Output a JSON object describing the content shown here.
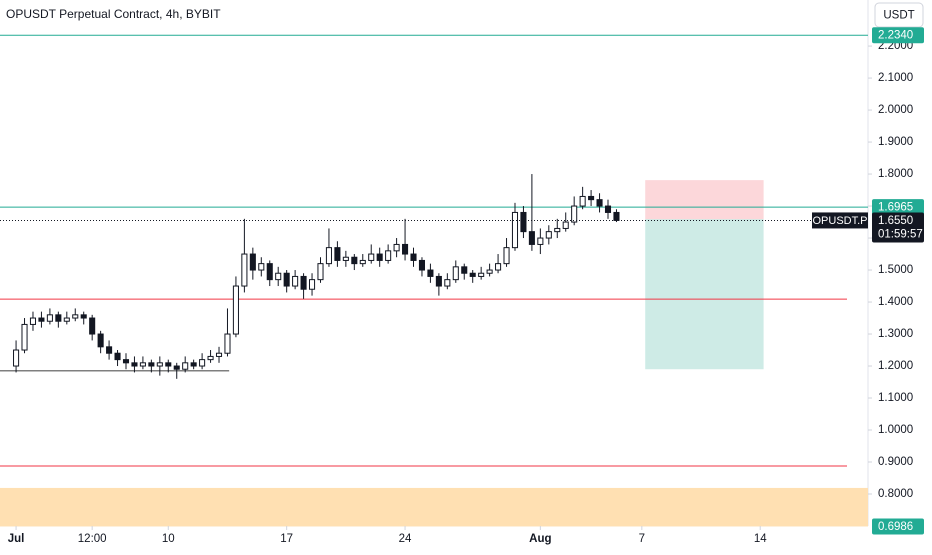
{
  "chart_data": {
    "type": "candlestick",
    "title": "OPUSDT Perpetual Contract, 4h, BYBIT",
    "currency": "USDT",
    "x": [
      0,
      0.5,
      1,
      1.5,
      2,
      2.5,
      3,
      3.5,
      4,
      4.5,
      5,
      5.5,
      6,
      6.5,
      7,
      7.5,
      8,
      8.5,
      9,
      9.5,
      10,
      10.5,
      11,
      11.5,
      12,
      12.5,
      13,
      13.5,
      14,
      14.5,
      15,
      15.5,
      16,
      16.5,
      17,
      17.5,
      18,
      18.5,
      19,
      19.5,
      20,
      20.5,
      21,
      21.5,
      22,
      22.5,
      23,
      23.5,
      24,
      24.5,
      25,
      25.5,
      26,
      26.5,
      27,
      27.5,
      28,
      28.5,
      29,
      29.5,
      30,
      30.5,
      31,
      31.5,
      32,
      32.5,
      33,
      33.5,
      34,
      34.5,
      35,
      35.5
    ],
    "open": [
      1.2,
      1.25,
      1.33,
      1.35,
      1.34,
      1.36,
      1.34,
      1.35,
      1.36,
      1.35,
      1.3,
      1.26,
      1.24,
      1.22,
      1.21,
      1.2,
      1.21,
      1.2,
      1.21,
      1.2,
      1.19,
      1.21,
      1.2,
      1.22,
      1.23,
      1.24,
      1.3,
      1.45,
      1.55,
      1.5,
      1.52,
      1.47,
      1.49,
      1.45,
      1.48,
      1.44,
      1.47,
      1.52,
      1.57,
      1.53,
      1.54,
      1.52,
      1.53,
      1.55,
      1.53,
      1.56,
      1.58,
      1.55,
      1.53,
      1.5,
      1.48,
      1.45,
      1.47,
      1.51,
      1.49,
      1.48,
      1.49,
      1.5,
      1.52,
      1.57,
      1.68,
      1.62,
      1.58,
      1.6,
      1.62,
      1.63,
      1.65,
      1.7,
      1.73,
      1.72,
      1.7,
      1.68
    ],
    "high": [
      1.28,
      1.35,
      1.37,
      1.37,
      1.38,
      1.37,
      1.37,
      1.38,
      1.37,
      1.36,
      1.31,
      1.28,
      1.25,
      1.24,
      1.23,
      1.23,
      1.22,
      1.23,
      1.22,
      1.21,
      1.23,
      1.22,
      1.24,
      1.25,
      1.26,
      1.38,
      1.48,
      1.66,
      1.57,
      1.54,
      1.53,
      1.51,
      1.5,
      1.5,
      1.49,
      1.49,
      1.54,
      1.63,
      1.59,
      1.56,
      1.55,
      1.55,
      1.58,
      1.57,
      1.58,
      1.6,
      1.66,
      1.57,
      1.54,
      1.52,
      1.49,
      1.49,
      1.53,
      1.52,
      1.5,
      1.51,
      1.52,
      1.55,
      1.6,
      1.71,
      1.7,
      1.8,
      1.63,
      1.64,
      1.66,
      1.68,
      1.73,
      1.76,
      1.75,
      1.74,
      1.72,
      1.69
    ],
    "low": [
      1.18,
      1.24,
      1.31,
      1.32,
      1.33,
      1.32,
      1.33,
      1.34,
      1.33,
      1.28,
      1.24,
      1.22,
      1.2,
      1.19,
      1.18,
      1.19,
      1.18,
      1.17,
      1.18,
      1.16,
      1.18,
      1.19,
      1.19,
      1.21,
      1.21,
      1.23,
      1.29,
      1.43,
      1.47,
      1.48,
      1.45,
      1.45,
      1.43,
      1.44,
      1.41,
      1.42,
      1.46,
      1.51,
      1.51,
      1.51,
      1.5,
      1.51,
      1.52,
      1.51,
      1.52,
      1.54,
      1.53,
      1.51,
      1.48,
      1.46,
      1.42,
      1.44,
      1.46,
      1.47,
      1.46,
      1.47,
      1.48,
      1.49,
      1.51,
      1.56,
      1.6,
      1.56,
      1.55,
      1.58,
      1.6,
      1.62,
      1.64,
      1.69,
      1.7,
      1.68,
      1.66,
      1.65
    ],
    "close": [
      1.25,
      1.33,
      1.35,
      1.34,
      1.36,
      1.34,
      1.35,
      1.36,
      1.35,
      1.3,
      1.26,
      1.24,
      1.22,
      1.21,
      1.2,
      1.21,
      1.2,
      1.21,
      1.2,
      1.19,
      1.21,
      1.2,
      1.22,
      1.23,
      1.24,
      1.3,
      1.45,
      1.55,
      1.5,
      1.52,
      1.47,
      1.49,
      1.45,
      1.48,
      1.44,
      1.47,
      1.52,
      1.57,
      1.53,
      1.54,
      1.52,
      1.53,
      1.55,
      1.53,
      1.56,
      1.58,
      1.55,
      1.53,
      1.5,
      1.48,
      1.45,
      1.47,
      1.51,
      1.49,
      1.48,
      1.49,
      1.5,
      1.52,
      1.57,
      1.68,
      1.62,
      1.58,
      1.6,
      1.62,
      1.63,
      1.65,
      1.7,
      1.73,
      1.72,
      1.7,
      1.68,
      1.655
    ],
    "xlim": [
      -0.95,
      49.9
    ],
    "xticks": [
      {
        "value": 0,
        "label": "Jul"
      },
      {
        "value": 4.5,
        "label": "12:00"
      },
      {
        "value": 9,
        "label": "10"
      },
      {
        "value": 16,
        "label": "17"
      },
      {
        "value": 23,
        "label": "24"
      },
      {
        "value": 31,
        "label": "Aug"
      },
      {
        "value": 37,
        "label": "7"
      },
      {
        "value": 44,
        "label": "14"
      }
    ],
    "ylim": [
      0.7,
      2.344
    ],
    "yticks": [
      {
        "value": 0.8,
        "label": "0.8000"
      },
      {
        "value": 0.9,
        "label": "0.9000"
      },
      {
        "value": 1.0,
        "label": "1.0000"
      },
      {
        "value": 1.1,
        "label": "1.1000"
      },
      {
        "value": 1.2,
        "label": "1.2000"
      },
      {
        "value": 1.3,
        "label": "1.3000"
      },
      {
        "value": 1.4,
        "label": "1.4000"
      },
      {
        "value": 1.5,
        "label": "1.5000"
      },
      {
        "value": 1.6,
        "label": "1.6000"
      },
      {
        "value": 1.7,
        "label": "1.7000"
      },
      {
        "value": 1.8,
        "label": "1.8000"
      },
      {
        "value": 1.9,
        "label": "1.9000"
      },
      {
        "value": 2.0,
        "label": "2.0000"
      },
      {
        "value": 2.1,
        "label": "2.1000"
      },
      {
        "value": 2.2,
        "label": "2.2000"
      }
    ],
    "hlines": [
      {
        "value": 2.234,
        "color": "#22ab94",
        "label": "2.2340"
      },
      {
        "value": 1.6965,
        "color": "#22ab94",
        "label": "1.6965"
      },
      {
        "value": 1.409,
        "color": "#f23645"
      },
      {
        "value": 0.8875,
        "color": "#f23645"
      }
    ],
    "support_line": {
      "value": 1.185,
      "x": [
        -0.95,
        12.6
      ],
      "color": "#555555"
    },
    "zone": {
      "low": 0.6986,
      "high": 0.819,
      "color": "#ffe0b2",
      "label": "0.6986"
    },
    "last_price": {
      "value": 1.655,
      "label": "1.6550",
      "symbol": "OPUSDT.P",
      "countdown": "01:59:57"
    },
    "position": {
      "x": [
        37.2,
        44.2
      ],
      "stop": 1.781,
      "entry": 1.659,
      "target": 1.19
    }
  }
}
